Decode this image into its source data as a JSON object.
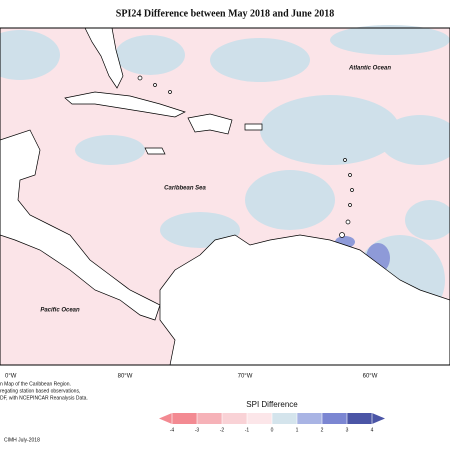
{
  "title": "SPI24 Difference between May 2018 and June 2018",
  "map_labels": {
    "atlantic": "Atlantic Ocean",
    "caribbean": "Caribbean Sea",
    "pacific": "Pacific Ocean"
  },
  "longitudes": [
    "0°W",
    "80°W",
    "70°W",
    "60°W"
  ],
  "legend": {
    "title": "SPI Difference",
    "ticks": [
      -4,
      -3,
      -2,
      -1,
      0,
      1,
      2,
      3,
      4
    ],
    "colors": [
      "#f38a92",
      "#f6b2b8",
      "#f9d2d6",
      "#fce6e9",
      "#d4e4ec",
      "#a9b4e4",
      "#7b86d2",
      "#4b55a6"
    ]
  },
  "footnote": [
    "n Map of the Caribbean Region.",
    "regating station based observations,",
    "DF, with NCEPINCAR Reanalysis Data."
  ],
  "credit": "CIMH July-2018"
}
